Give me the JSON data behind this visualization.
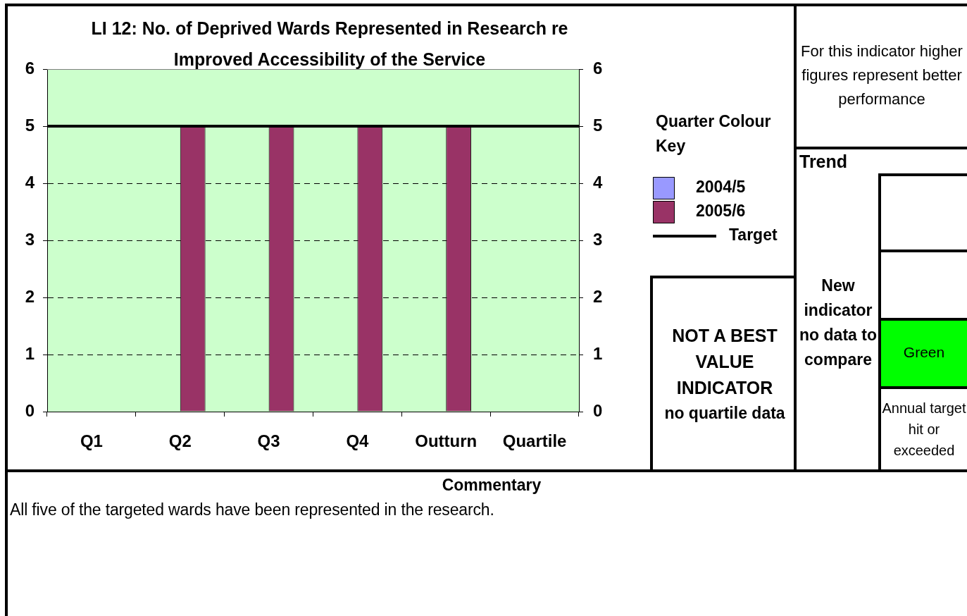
{
  "chart_data": [
    {
      "type": "bar",
      "title": "LI 12: No. of Deprived Wards Represented in Research re Improved Accessibility of the Service",
      "categories": [
        "Q1",
        "Q2",
        "Q3",
        "Q4",
        "Outturn",
        "Quartile"
      ],
      "series": [
        {
          "name": "2004/5",
          "color": "#9999ff",
          "values": [
            null,
            null,
            null,
            null,
            null,
            null
          ]
        },
        {
          "name": "2005/6",
          "color": "#993366",
          "values": [
            null,
            5,
            5,
            5,
            5,
            null
          ]
        }
      ],
      "ylim": [
        0,
        6
      ],
      "yticks": [
        0,
        1,
        2,
        3,
        4,
        5,
        6
      ],
      "y2lim": [
        0,
        6
      ],
      "y2ticks": [
        0,
        1,
        2,
        3,
        4,
        5,
        6
      ],
      "ref_lines": [
        {
          "axis": "y",
          "value": 5,
          "label": "Target",
          "color": "#000000"
        }
      ],
      "grid": "y",
      "legend": "right",
      "legend_title": "Quarter Colour Key"
    },
    {
      "type": "other",
      "annotations": [
        "For this indicator higher figures represent better performance",
        "Trend",
        "New indicator no data to compare",
        "Green",
        "Annual target hit or exceeded",
        "NOT A BEST VALUE INDICATOR",
        "no quartile data",
        "Commentary",
        "All five of the targeted wards have been represented in the research."
      ]
    }
  ]
}
